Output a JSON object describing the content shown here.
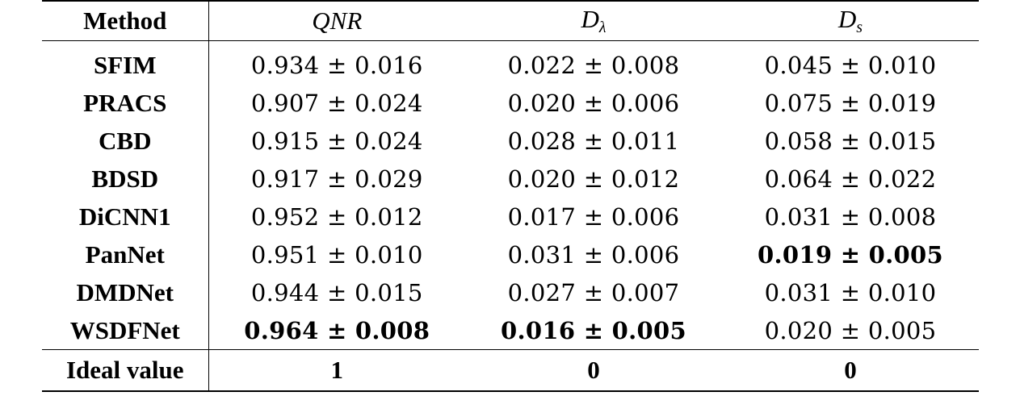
{
  "table": {
    "headers": {
      "method": "Method",
      "qnr": "QNR",
      "d_lambda": "D",
      "d_lambda_sub": "λ",
      "d_s": "D",
      "d_s_sub": "s"
    },
    "rows": [
      {
        "method": "SFIM",
        "qnr": "0.934 ± 0.016",
        "d_lambda": "0.022 ± 0.008",
        "d_s": "0.045 ± 0.010"
      },
      {
        "method": "PRACS",
        "qnr": "0.907 ± 0.024",
        "d_lambda": "0.020 ± 0.006",
        "d_s": "0.075 ± 0.019"
      },
      {
        "method": "CBD",
        "qnr": "0.915 ± 0.024",
        "d_lambda": "0.028 ± 0.011",
        "d_s": "0.058 ± 0.015"
      },
      {
        "method": "BDSD",
        "qnr": "0.917 ± 0.029",
        "d_lambda": "0.020 ± 0.012",
        "d_s": "0.064 ± 0.022"
      },
      {
        "method": "DiCNN1",
        "qnr": "0.952 ± 0.012",
        "d_lambda": "0.017 ± 0.006",
        "d_s": "0.031 ± 0.008"
      },
      {
        "method": "PanNet",
        "qnr": "0.951 ± 0.010",
        "d_lambda": "0.031 ± 0.006",
        "d_s": "0.019 ± 0.005"
      },
      {
        "method": "DMDNet",
        "qnr": "0.944 ± 0.015",
        "d_lambda": "0.027 ± 0.007",
        "d_s": "0.031 ± 0.010"
      },
      {
        "method": "WSDFNet",
        "qnr": "0.964 ± 0.008",
        "d_lambda": "0.016 ± 0.005",
        "d_s": "0.020 ± 0.005"
      }
    ],
    "ideal": {
      "label": "Ideal value",
      "qnr": "1",
      "d_lambda": "0",
      "d_s": "0"
    }
  }
}
